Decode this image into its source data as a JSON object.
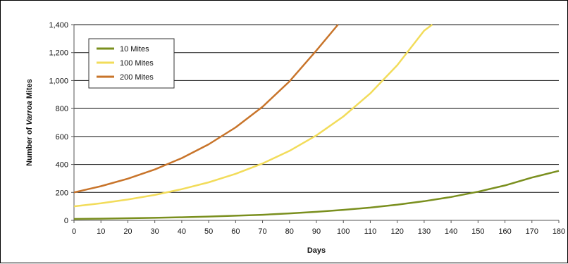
{
  "chart_data": {
    "type": "line",
    "xlabel": "Days",
    "ylabel_prefix": "Number of ",
    "ylabel_italic": "Varroa",
    "ylabel_suffix": " Mites",
    "xlim": [
      0,
      180
    ],
    "ylim": [
      0,
      1400
    ],
    "x_ticks": [
      0,
      10,
      20,
      30,
      40,
      50,
      60,
      70,
      80,
      90,
      100,
      110,
      120,
      130,
      140,
      150,
      160,
      170,
      180
    ],
    "x_tick_labels": [
      "0",
      "10",
      "20",
      "30",
      "40",
      "50",
      "60",
      "70",
      "80",
      "90",
      "100",
      "110",
      "120",
      "130",
      "140",
      "150",
      "160",
      "170",
      "180"
    ],
    "y_ticks": [
      0,
      200,
      400,
      600,
      800,
      1000,
      1200,
      1400
    ],
    "y_tick_labels": [
      "0",
      "200",
      "400",
      "600",
      "800",
      "1,000",
      "1,200",
      "1,400"
    ],
    "grid": "horizontal",
    "legend_position": "top-left",
    "series": [
      {
        "name": "10 Mites",
        "color": "#7a8f1e",
        "x": [
          0,
          10,
          20,
          30,
          40,
          50,
          60,
          70,
          80,
          90,
          100,
          110,
          120,
          130,
          140,
          150,
          160,
          170,
          180
        ],
        "values": [
          10,
          12,
          15,
          18,
          22,
          27,
          33,
          40,
          50,
          61,
          75,
          91,
          112,
          137,
          167,
          205,
          250,
          306,
          354
        ]
      },
      {
        "name": "100 Mites",
        "color": "#f2dc5a",
        "x": [
          0,
          10,
          20,
          30,
          40,
          50,
          60,
          70,
          80,
          90,
          100,
          110,
          120,
          130,
          133
        ],
        "values": [
          100,
          122,
          149,
          182,
          223,
          272,
          333,
          407,
          497,
          608,
          743,
          908,
          1110,
          1357,
          1400
        ]
      },
      {
        "name": "200 Mites",
        "color": "#c8742a",
        "x": [
          0,
          10,
          20,
          30,
          40,
          50,
          60,
          70,
          80,
          90,
          98
        ],
        "values": [
          200,
          244,
          298,
          364,
          445,
          544,
          665,
          813,
          994,
          1215,
          1400
        ]
      }
    ]
  }
}
